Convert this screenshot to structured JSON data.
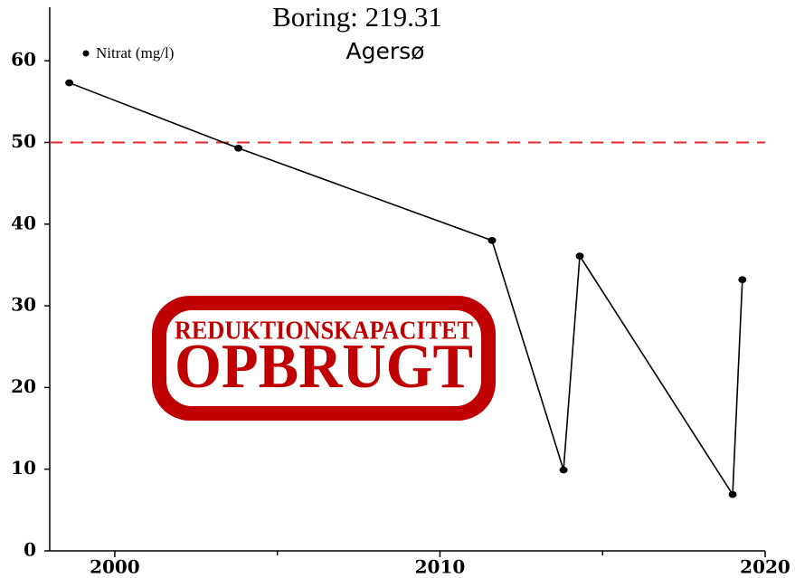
{
  "chart_data": {
    "type": "line",
    "title": "Boring: 219.31",
    "subtitle": "Agersø",
    "x": [
      1998.6,
      2003.8,
      2011.6,
      2013.8,
      2014.3,
      2019.0,
      2019.3
    ],
    "series": [
      {
        "name": "Nitrat (mg/l)",
        "color": "#000000",
        "values": [
          57.3,
          49.3,
          38.0,
          9.9,
          36.1,
          6.9,
          33.2
        ]
      }
    ],
    "xlim": [
      1998,
      2020
    ],
    "xticks": [
      2000,
      2010,
      2020
    ],
    "xminor_ticks": [
      2005,
      2015
    ],
    "ylim": [
      0,
      66
    ],
    "yticks": [
      0,
      10,
      20,
      30,
      40,
      50,
      60
    ],
    "threshold": 50,
    "threshold_color": "#e8262a",
    "stamp": {
      "line1": "REDUKTIONSKAPACITET",
      "line2": "OPBRUGT",
      "color": "#c00000"
    },
    "legend": "upper left"
  }
}
